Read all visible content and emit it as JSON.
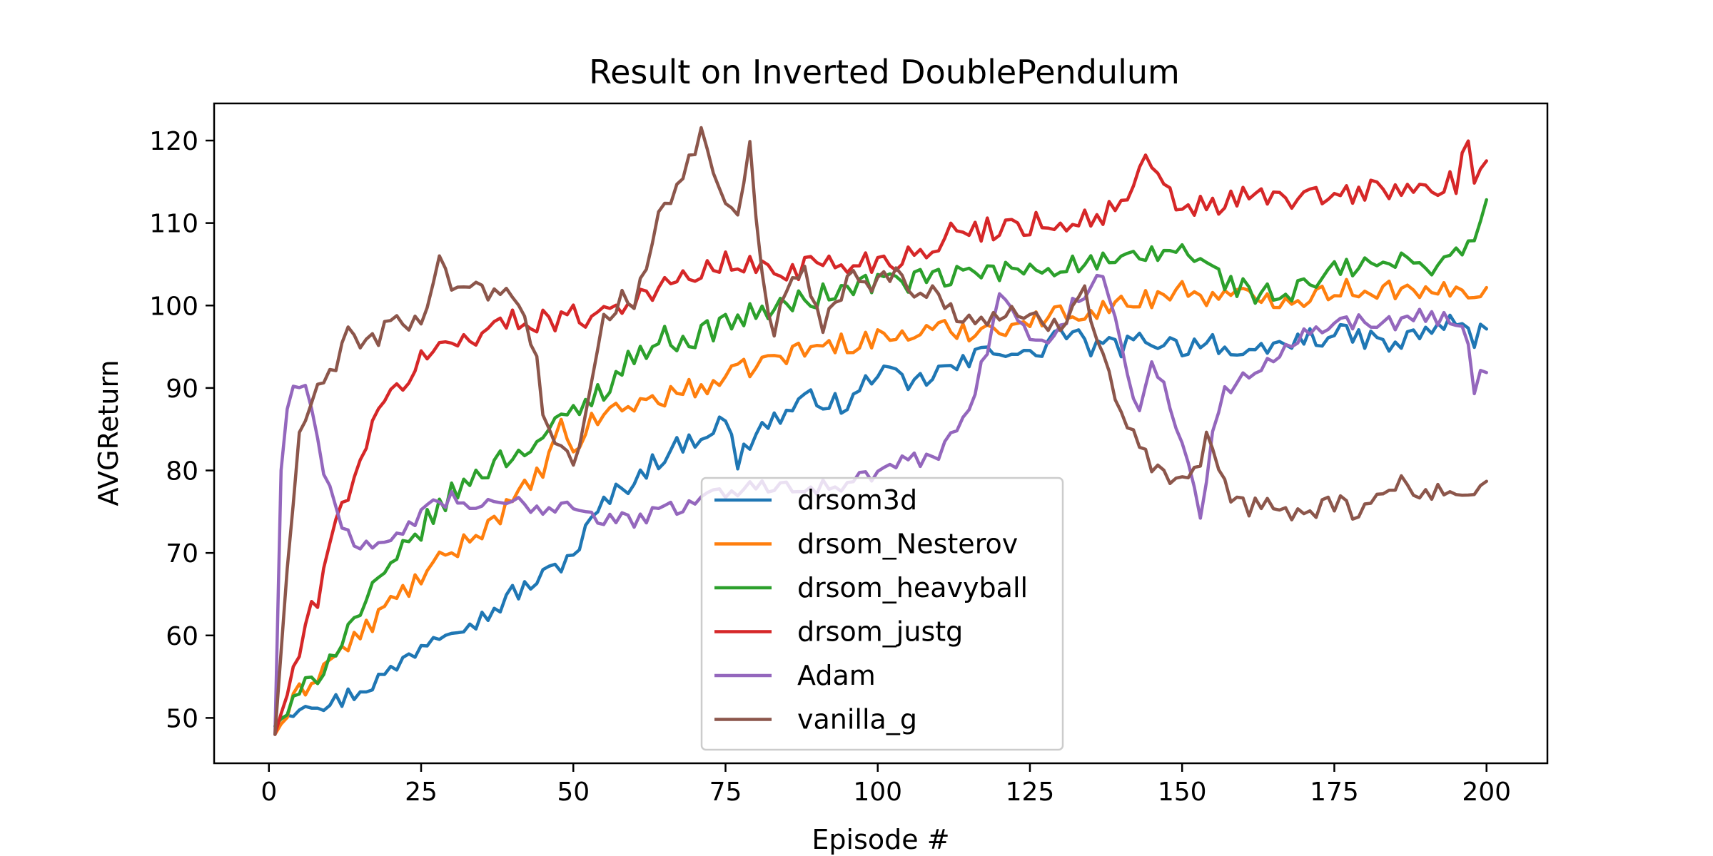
{
  "chart_data": {
    "type": "line",
    "title": "Result on Inverted DoublePendulum",
    "xlabel": "Episode #",
    "ylabel": "AVGReturn",
    "xlim": [
      -9,
      210
    ],
    "ylim": [
      44.5,
      124.5
    ],
    "xticks": [
      0,
      25,
      50,
      75,
      100,
      125,
      150,
      175,
      200
    ],
    "yticks": [
      50,
      60,
      70,
      80,
      90,
      100,
      110,
      120
    ],
    "grid": false,
    "legend_position": "lower center",
    "x_range": [
      1,
      200
    ],
    "series": [
      {
        "name": "drsom3d",
        "color": "#1f77b4",
        "points": [
          [
            1,
            49
          ],
          [
            3,
            50.9
          ],
          [
            7,
            52.4
          ],
          [
            10,
            51.5
          ],
          [
            15,
            53.5
          ],
          [
            20,
            55.5
          ],
          [
            25,
            59
          ],
          [
            30,
            61.5
          ],
          [
            35,
            62
          ],
          [
            40,
            65
          ],
          [
            45,
            67
          ],
          [
            50,
            70
          ],
          [
            55,
            76
          ],
          [
            60,
            79
          ],
          [
            65,
            82
          ],
          [
            70,
            84
          ],
          [
            75,
            86
          ],
          [
            77,
            81
          ],
          [
            80,
            85
          ],
          [
            85,
            87
          ],
          [
            90,
            89
          ],
          [
            95,
            87.5
          ],
          [
            100,
            92.5
          ],
          [
            105,
            90
          ],
          [
            110,
            92
          ],
          [
            115,
            93
          ],
          [
            118,
            95
          ],
          [
            120,
            95
          ],
          [
            125,
            93.5
          ],
          [
            130,
            97
          ],
          [
            135,
            95
          ],
          [
            140,
            95
          ],
          [
            145,
            96
          ],
          [
            150,
            95
          ],
          [
            155,
            96
          ],
          [
            160,
            93
          ],
          [
            165,
            95
          ],
          [
            170,
            96
          ],
          [
            175,
            96.5
          ],
          [
            180,
            96
          ],
          [
            185,
            95
          ],
          [
            190,
            97
          ],
          [
            195,
            98
          ],
          [
            198,
            96
          ],
          [
            200,
            97.5
          ]
        ]
      },
      {
        "name": "drsom_Nesterov",
        "color": "#ff7f0e",
        "points": [
          [
            1,
            48
          ],
          [
            5,
            53
          ],
          [
            10,
            57
          ],
          [
            15,
            60
          ],
          [
            20,
            64
          ],
          [
            25,
            67
          ],
          [
            30,
            70
          ],
          [
            35,
            73
          ],
          [
            40,
            76
          ],
          [
            45,
            80
          ],
          [
            48,
            85
          ],
          [
            50,
            82
          ],
          [
            52,
            85
          ],
          [
            55,
            87
          ],
          [
            60,
            88
          ],
          [
            65,
            89
          ],
          [
            70,
            90
          ],
          [
            75,
            91
          ],
          [
            80,
            93
          ],
          [
            85,
            94
          ],
          [
            90,
            95
          ],
          [
            95,
            95.5
          ],
          [
            100,
            96
          ],
          [
            105,
            96.5
          ],
          [
            110,
            97
          ],
          [
            115,
            97
          ],
          [
            120,
            97.5
          ],
          [
            125,
            98
          ],
          [
            130,
            99
          ],
          [
            135,
            99.5
          ],
          [
            140,
            100
          ],
          [
            145,
            101
          ],
          [
            150,
            102
          ],
          [
            155,
            101
          ],
          [
            160,
            101
          ],
          [
            165,
            101
          ],
          [
            170,
            101
          ],
          [
            175,
            102
          ],
          [
            180,
            102
          ],
          [
            185,
            102
          ],
          [
            190,
            101
          ],
          [
            195,
            102
          ],
          [
            200,
            102
          ]
        ]
      },
      {
        "name": "drsom_heavyball",
        "color": "#2ca02c",
        "points": [
          [
            1,
            49
          ],
          [
            5,
            52.5
          ],
          [
            10,
            57.5
          ],
          [
            15,
            63
          ],
          [
            20,
            68
          ],
          [
            25,
            73
          ],
          [
            30,
            77
          ],
          [
            35,
            80
          ],
          [
            40,
            82
          ],
          [
            45,
            84
          ],
          [
            50,
            87
          ],
          [
            55,
            90
          ],
          [
            60,
            94
          ],
          [
            65,
            96
          ],
          [
            70,
            96
          ],
          [
            75,
            98
          ],
          [
            80,
            99
          ],
          [
            85,
            100
          ],
          [
            90,
            101
          ],
          [
            95,
            102
          ],
          [
            100,
            103
          ],
          [
            105,
            103
          ],
          [
            110,
            103
          ],
          [
            115,
            104
          ],
          [
            120,
            104
          ],
          [
            125,
            104.5
          ],
          [
            130,
            105
          ],
          [
            135,
            105
          ],
          [
            140,
            105
          ],
          [
            145,
            106
          ],
          [
            150,
            107
          ],
          [
            155,
            104
          ],
          [
            160,
            102
          ],
          [
            165,
            101
          ],
          [
            170,
            102
          ],
          [
            175,
            104
          ],
          [
            180,
            105
          ],
          [
            185,
            105
          ],
          [
            190,
            105
          ],
          [
            195,
            106
          ],
          [
            198,
            109
          ],
          [
            200,
            112
          ]
        ]
      },
      {
        "name": "drsom_justg",
        "color": "#d62728",
        "points": [
          [
            1,
            48
          ],
          [
            3,
            53
          ],
          [
            5,
            58
          ],
          [
            8,
            65
          ],
          [
            10,
            71
          ],
          [
            15,
            82
          ],
          [
            20,
            89
          ],
          [
            25,
            93.5
          ],
          [
            30,
            95.5
          ],
          [
            35,
            97
          ],
          [
            40,
            98
          ],
          [
            45,
            98.5
          ],
          [
            50,
            98.5
          ],
          [
            55,
            99.5
          ],
          [
            60,
            101
          ],
          [
            65,
            102
          ],
          [
            70,
            104
          ],
          [
            75,
            105
          ],
          [
            80,
            104.5
          ],
          [
            85,
            104.5
          ],
          [
            90,
            105
          ],
          [
            95,
            105
          ],
          [
            100,
            105.5
          ],
          [
            105,
            106
          ],
          [
            110,
            108
          ],
          [
            115,
            109
          ],
          [
            120,
            109.5
          ],
          [
            125,
            110
          ],
          [
            130,
            110
          ],
          [
            135,
            110.5
          ],
          [
            140,
            112
          ],
          [
            144,
            117
          ],
          [
            148,
            113
          ],
          [
            150,
            112
          ],
          [
            155,
            112
          ],
          [
            160,
            113
          ],
          [
            165,
            113
          ],
          [
            170,
            113
          ],
          [
            175,
            113
          ],
          [
            180,
            114
          ],
          [
            185,
            114
          ],
          [
            190,
            114
          ],
          [
            195,
            115
          ],
          [
            197,
            119
          ],
          [
            198,
            116
          ],
          [
            200,
            116
          ]
        ]
      },
      {
        "name": "Adam",
        "color": "#9467bd",
        "points": [
          [
            1,
            48
          ],
          [
            2,
            80
          ],
          [
            3,
            87.5
          ],
          [
            4,
            90
          ],
          [
            5,
            91
          ],
          [
            6,
            90
          ],
          [
            7,
            88
          ],
          [
            8,
            83
          ],
          [
            10,
            78
          ],
          [
            12,
            73.5
          ],
          [
            15,
            71
          ],
          [
            17,
            70
          ],
          [
            20,
            71
          ],
          [
            25,
            75
          ],
          [
            30,
            76.5
          ],
          [
            35,
            75.5
          ],
          [
            40,
            76
          ],
          [
            45,
            75.5
          ],
          [
            50,
            76
          ],
          [
            55,
            74
          ],
          [
            60,
            74
          ],
          [
            65,
            75
          ],
          [
            70,
            76.5
          ],
          [
            75,
            77.5
          ],
          [
            80,
            78
          ],
          [
            85,
            78.5
          ],
          [
            90,
            78
          ],
          [
            95,
            78
          ],
          [
            100,
            80
          ],
          [
            105,
            81
          ],
          [
            110,
            82
          ],
          [
            113,
            85
          ],
          [
            116,
            90
          ],
          [
            118,
            95
          ],
          [
            120,
            102
          ],
          [
            122,
            99
          ],
          [
            125,
            96
          ],
          [
            128,
            96
          ],
          [
            130,
            97
          ],
          [
            132,
            100
          ],
          [
            135,
            102
          ],
          [
            137,
            104
          ],
          [
            139,
            99
          ],
          [
            141,
            91
          ],
          [
            143,
            88
          ],
          [
            145,
            93
          ],
          [
            147,
            90
          ],
          [
            150,
            84
          ],
          [
            152,
            77
          ],
          [
            153,
            75
          ],
          [
            155,
            84
          ],
          [
            157,
            90
          ],
          [
            160,
            91
          ],
          [
            165,
            94
          ],
          [
            170,
            97
          ],
          [
            175,
            98
          ],
          [
            180,
            98
          ],
          [
            185,
            98
          ],
          [
            190,
            99
          ],
          [
            195,
            98
          ],
          [
            197,
            96
          ],
          [
            198,
            90
          ],
          [
            200,
            92.5
          ]
        ]
      },
      {
        "name": "vanilla_g",
        "color": "#8c564b",
        "points": [
          [
            1,
            48
          ],
          [
            3,
            68
          ],
          [
            5,
            84
          ],
          [
            7,
            88
          ],
          [
            10,
            92
          ],
          [
            13,
            96
          ],
          [
            16,
            95.5
          ],
          [
            20,
            97.5
          ],
          [
            25,
            98
          ],
          [
            28,
            106
          ],
          [
            30,
            102
          ],
          [
            33,
            103
          ],
          [
            36,
            101
          ],
          [
            40,
            101.5
          ],
          [
            42,
            98
          ],
          [
            44,
            95
          ],
          [
            45,
            87
          ],
          [
            47,
            84
          ],
          [
            50,
            81
          ],
          [
            52,
            86
          ],
          [
            55,
            98
          ],
          [
            58,
            101
          ],
          [
            60,
            101
          ],
          [
            62,
            104
          ],
          [
            64,
            110
          ],
          [
            66,
            113
          ],
          [
            68,
            116
          ],
          [
            70,
            119
          ],
          [
            71,
            120.5
          ],
          [
            73,
            117
          ],
          [
            75,
            113
          ],
          [
            77,
            110
          ],
          [
            79,
            119
          ],
          [
            81,
            103
          ],
          [
            83,
            95
          ],
          [
            85,
            103
          ],
          [
            88,
            105
          ],
          [
            91,
            97
          ],
          [
            93,
            100
          ],
          [
            95,
            104
          ],
          [
            98,
            102
          ],
          [
            100,
            104
          ],
          [
            103,
            104
          ],
          [
            106,
            101
          ],
          [
            110,
            102
          ],
          [
            113,
            99
          ],
          [
            116,
            98
          ],
          [
            120,
            99
          ],
          [
            125,
            98
          ],
          [
            130,
            98
          ],
          [
            134,
            102
          ],
          [
            136,
            97
          ],
          [
            138,
            92
          ],
          [
            140,
            87
          ],
          [
            143,
            83
          ],
          [
            145,
            80
          ],
          [
            148,
            78
          ],
          [
            151,
            78
          ],
          [
            153,
            81
          ],
          [
            154,
            84
          ],
          [
            156,
            79
          ],
          [
            158,
            77
          ],
          [
            160,
            75.5
          ],
          [
            165,
            75.5
          ],
          [
            170,
            75
          ],
          [
            175,
            76
          ],
          [
            180,
            75
          ],
          [
            182,
            77
          ],
          [
            185,
            78
          ],
          [
            190,
            78
          ],
          [
            193,
            77
          ],
          [
            197,
            77
          ],
          [
            199,
            79
          ],
          [
            200,
            79
          ]
        ]
      }
    ]
  }
}
